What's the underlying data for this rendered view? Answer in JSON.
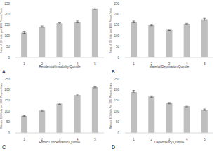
{
  "chart_data": [
    {
      "type": "bar",
      "title": "A",
      "x_label": "Residential Instability Quintile",
      "y_label": "Rates of ED Visits per 1000 Person-Years",
      "categories": [
        "1",
        "2",
        "3",
        "4",
        "5"
      ],
      "values": [
        115,
        143,
        158,
        165,
        225
      ],
      "errors": [
        3,
        3,
        3,
        4,
        4
      ],
      "color": "#bfbfbf",
      "ylim": [
        0,
        250
      ],
      "yticks": [
        0,
        50,
        100,
        150,
        200,
        250
      ],
      "grid": false
    },
    {
      "type": "bar",
      "title": "B",
      "x_label": "Material Deprivation Quintile",
      "y_label": "Rates of ED Visits per 1000 Person-Years",
      "categories": [
        "1",
        "2",
        "3",
        "4",
        "5"
      ],
      "values": [
        165,
        150,
        128,
        155,
        177
      ],
      "errors": [
        4,
        3,
        3,
        3,
        4
      ],
      "color": "#bfbfbf",
      "ylim": [
        0,
        250
      ],
      "yticks": [
        0,
        50,
        100,
        150,
        200,
        250
      ],
      "grid": false
    },
    {
      "type": "bar",
      "title": "C",
      "x_label": "Ethnic Concentration Quintile",
      "y_label": "Rates of ED Visits per 1000 Person-Years",
      "categories": [
        "1",
        "2",
        "3",
        "4",
        "5"
      ],
      "values": [
        78,
        103,
        135,
        175,
        212
      ],
      "errors": [
        2,
        3,
        3,
        4,
        4
      ],
      "color": "#bfbfbf",
      "ylim": [
        0,
        250
      ],
      "yticks": [
        0,
        50,
        100,
        150,
        200,
        250
      ],
      "grid": false
    },
    {
      "type": "bar",
      "title": "D",
      "x_label": "Dependency Quintile",
      "y_label": "Rates of ED Visits Per 1000 Person-Years",
      "categories": [
        "1",
        "2",
        "3",
        "4",
        "5"
      ],
      "values": [
        192,
        168,
        137,
        123,
        107
      ],
      "errors": [
        4,
        3,
        3,
        3,
        3
      ],
      "color": "#bfbfbf",
      "ylim": [
        0,
        250
      ],
      "yticks": [
        0,
        50,
        100,
        150,
        200,
        250
      ],
      "grid": false
    }
  ]
}
